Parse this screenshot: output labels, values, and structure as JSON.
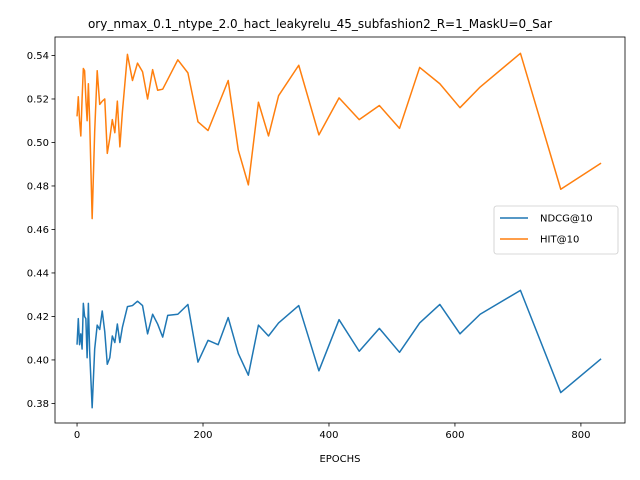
{
  "chart_data": {
    "type": "line",
    "title": "ory_nmax_0.1_ntype_2.0_hact_leakyrelu_45_subfashion2_R=1_MaskU=0_Sar",
    "xlabel": "EPOCHS",
    "ylabel": "",
    "xlim": [
      -35,
      870
    ],
    "ylim": [
      0.371,
      0.5485
    ],
    "xticks": [
      0,
      200,
      400,
      600,
      800
    ],
    "yticks": [
      0.38,
      0.4,
      0.42,
      0.44,
      0.46,
      0.48,
      0.5,
      0.52,
      0.54
    ],
    "grid": false,
    "legend_position": "center-right",
    "series": [
      {
        "name": "NDCG@10",
        "color": "#1f77b4",
        "x": [
          0,
          2,
          4,
          6,
          8,
          10,
          12,
          14,
          16,
          18,
          20,
          24,
          28,
          32,
          36,
          40,
          44,
          48,
          52,
          56,
          60,
          64,
          68,
          72,
          80,
          88,
          96,
          104,
          112,
          120,
          128,
          136,
          144,
          160,
          176,
          192,
          208,
          224,
          240,
          256,
          272,
          288,
          304,
          320,
          352,
          384,
          416,
          448,
          480,
          512,
          544,
          576,
          608,
          640,
          704,
          768,
          832
        ],
        "values": [
          0.407,
          0.419,
          0.407,
          0.412,
          0.405,
          0.426,
          0.42,
          0.419,
          0.401,
          0.426,
          0.404,
          0.378,
          0.405,
          0.416,
          0.414,
          0.4225,
          0.413,
          0.398,
          0.401,
          0.411,
          0.408,
          0.4165,
          0.408,
          0.415,
          0.4245,
          0.425,
          0.427,
          0.425,
          0.412,
          0.421,
          0.4165,
          0.4105,
          0.4205,
          0.421,
          0.4255,
          0.399,
          0.409,
          0.407,
          0.4195,
          0.403,
          0.393,
          0.416,
          0.411,
          0.417,
          0.425,
          0.395,
          0.4185,
          0.404,
          0.4145,
          0.4035,
          0.417,
          0.4255,
          0.412,
          0.421,
          0.432,
          0.385,
          0.4005
        ]
      },
      {
        "name": "HIT@10",
        "color": "#ff7f0e",
        "x": [
          0,
          2,
          4,
          6,
          8,
          10,
          12,
          14,
          16,
          18,
          20,
          24,
          28,
          32,
          36,
          40,
          44,
          48,
          52,
          56,
          60,
          64,
          68,
          72,
          80,
          88,
          96,
          104,
          112,
          120,
          128,
          136,
          144,
          160,
          176,
          192,
          208,
          224,
          240,
          256,
          272,
          288,
          304,
          320,
          352,
          384,
          416,
          448,
          480,
          512,
          544,
          576,
          608,
          640,
          704,
          768,
          832
        ],
        "values": [
          0.512,
          0.521,
          0.51,
          0.503,
          0.52,
          0.534,
          0.533,
          0.52,
          0.51,
          0.527,
          0.5105,
          0.465,
          0.505,
          0.533,
          0.5175,
          0.519,
          0.52,
          0.495,
          0.502,
          0.5105,
          0.5045,
          0.519,
          0.498,
          0.514,
          0.5405,
          0.5285,
          0.5365,
          0.5325,
          0.52,
          0.5335,
          0.524,
          0.5245,
          0.529,
          0.538,
          0.532,
          0.5095,
          0.5055,
          0.517,
          0.5285,
          0.4965,
          0.4805,
          0.5185,
          0.503,
          0.5215,
          0.5355,
          0.5035,
          0.5205,
          0.5105,
          0.517,
          0.5065,
          0.5345,
          0.527,
          0.516,
          0.5255,
          0.541,
          0.4785,
          0.4905
        ]
      }
    ]
  }
}
